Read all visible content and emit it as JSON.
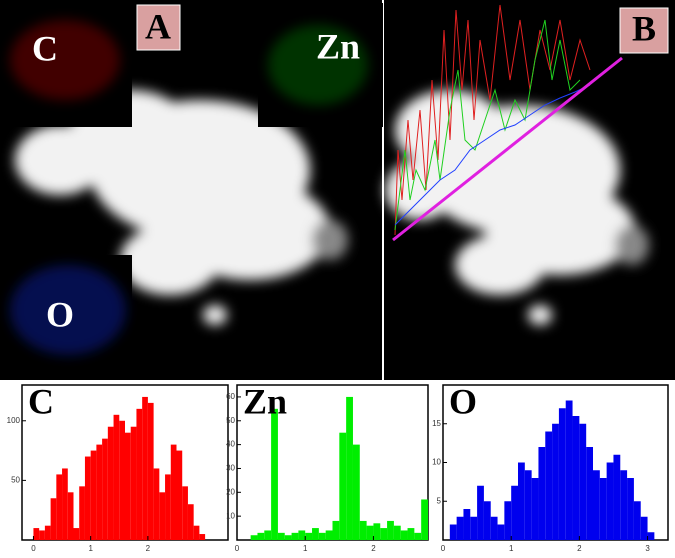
{
  "image_labels": {
    "panel_a": "A",
    "panel_b": "B",
    "map_c": "C",
    "map_zn": "Zn",
    "map_o": "O"
  },
  "chart_data": [
    {
      "type": "histogram",
      "title": "C",
      "color": "#ff0000",
      "bins": [
        0,
        0.1,
        0.2,
        0.3,
        0.4,
        0.5,
        0.6,
        0.7,
        0.8,
        0.9,
        1,
        1.1,
        1.2,
        1.3,
        1.4,
        1.5,
        1.6,
        1.7,
        1.8,
        1.9,
        2,
        2.1,
        2.2,
        2.3,
        2.4,
        2.5,
        2.6,
        2.7,
        2.8,
        2.9,
        3
      ],
      "values": [
        10,
        8,
        12,
        35,
        55,
        60,
        40,
        10,
        45,
        70,
        75,
        80,
        85,
        95,
        105,
        100,
        90,
        95,
        110,
        120,
        115,
        60,
        40,
        55,
        80,
        75,
        45,
        30,
        12,
        5
      ],
      "xlim": [
        -0.2,
        3.4
      ],
      "xticks": [
        0,
        1,
        2
      ],
      "ylim": [
        0,
        130
      ],
      "yticks": [
        50,
        100
      ]
    },
    {
      "type": "histogram",
      "title": "Zn",
      "color": "#00ee00",
      "bins": [
        0,
        0.1,
        0.2,
        0.3,
        0.4,
        0.5,
        0.6,
        0.7,
        0.8,
        0.9,
        1,
        1.1,
        1.2,
        1.3,
        1.4,
        1.5,
        1.6,
        1.7,
        1.8,
        1.9,
        2,
        2.1,
        2.2,
        2.3,
        2.4,
        2.5,
        2.6,
        2.7,
        2.8
      ],
      "values": [
        0,
        0,
        2,
        3,
        4,
        55,
        3,
        2,
        3,
        4,
        3,
        5,
        3,
        4,
        8,
        45,
        60,
        40,
        8,
        6,
        7,
        5,
        8,
        6,
        4,
        5,
        3,
        17
      ],
      "xlim": [
        0,
        2.8
      ],
      "xticks": [
        0,
        1,
        2
      ],
      "ylim": [
        0,
        65
      ],
      "yticks": [
        10,
        20,
        30,
        40,
        50,
        60
      ]
    },
    {
      "type": "histogram",
      "title": "O",
      "color": "#0000ee",
      "bins": [
        0,
        0.1,
        0.2,
        0.3,
        0.4,
        0.5,
        0.6,
        0.7,
        0.8,
        0.9,
        1,
        1.1,
        1.2,
        1.3,
        1.4,
        1.5,
        1.6,
        1.7,
        1.8,
        1.9,
        2,
        2.1,
        2.2,
        2.3,
        2.4,
        2.5,
        2.6,
        2.7,
        2.8,
        2.9,
        3,
        3.1
      ],
      "values": [
        0,
        2,
        3,
        4,
        3,
        7,
        5,
        3,
        2,
        5,
        7,
        10,
        9,
        8,
        12,
        14,
        15,
        17,
        18,
        16,
        15,
        12,
        9,
        8,
        10,
        11,
        9,
        8,
        5,
        3,
        1
      ],
      "xlim": [
        0,
        3.3
      ],
      "xticks": [
        0,
        1,
        2,
        3
      ],
      "ylim": [
        0,
        20
      ],
      "yticks": [
        5,
        10,
        15
      ]
    }
  ]
}
